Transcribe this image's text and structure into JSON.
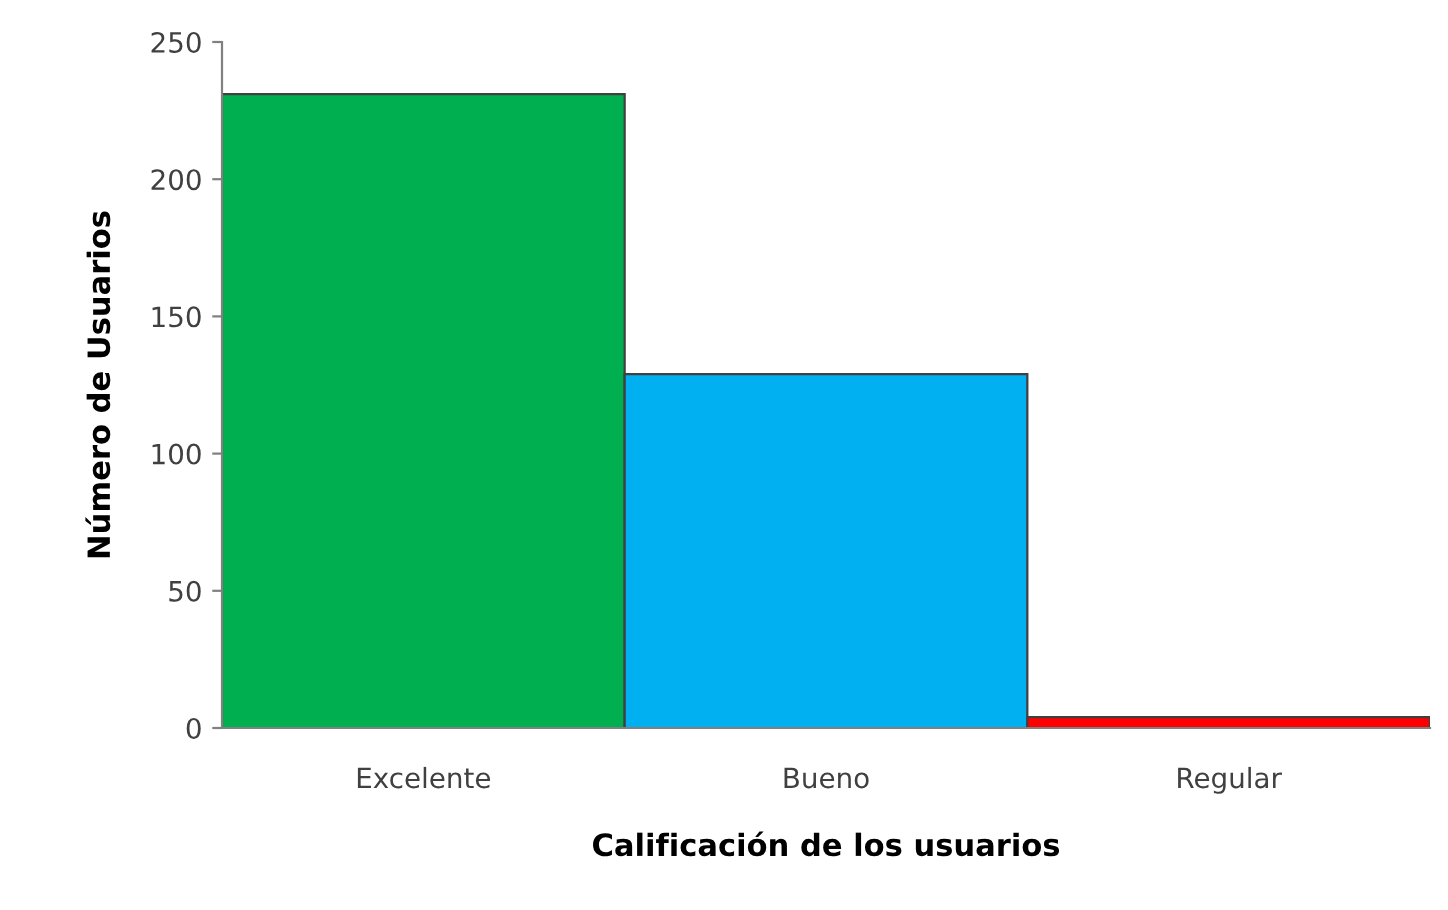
{
  "chart_data": {
    "type": "bar",
    "xlabel": "Calificación de los usuarios",
    "ylabel": "Número de Usuarios",
    "categories": [
      "Excelente",
      "Bueno",
      "Regular"
    ],
    "values": [
      231,
      129,
      4
    ],
    "colors": [
      "#00b050",
      "#00b0f0",
      "#ff0000"
    ],
    "ylim": [
      0,
      250
    ],
    "yticks": [
      0,
      50,
      100,
      150,
      200,
      250
    ],
    "grid": false,
    "legend": false
  }
}
